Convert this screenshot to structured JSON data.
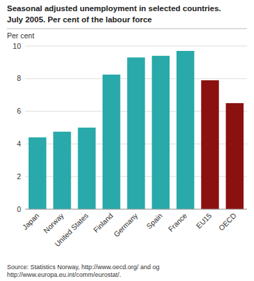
{
  "chart_data": {
    "type": "bar",
    "title": "Seasonal adjusted unemployment in selected countries.",
    "subtitle": "July 2005. Per cent of the labour force",
    "ylabel": "Per cent",
    "annotations": [
      "Source: Statistics Norway, http://www.oecd.org/ and og\nhttp://www.europa.eu.int/comm/eurostat/."
    ],
    "categories": [
      "Japan",
      "Norway",
      "United States",
      "Finland",
      "Germany",
      "Spain",
      "France",
      "EU15",
      "OECD"
    ],
    "values": [
      4.4,
      4.75,
      5.0,
      8.25,
      9.3,
      9.4,
      9.7,
      7.9,
      6.5
    ],
    "colors": [
      "#29a9a9",
      "#29a9a9",
      "#29a9a9",
      "#29a9a9",
      "#29a9a9",
      "#29a9a9",
      "#29a9a9",
      "#8b1010",
      "#8b1010"
    ],
    "ylim": [
      0,
      10
    ],
    "yticks": [
      0,
      2,
      4,
      6,
      8,
      10
    ],
    "grid": true
  }
}
